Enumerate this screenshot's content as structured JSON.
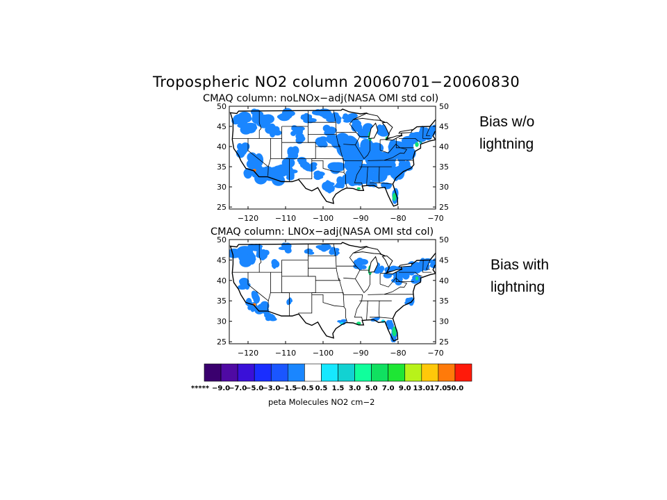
{
  "figure": {
    "title": "Tropospheric NO2 column 20060701−20060830",
    "units_label": "peta Molecules NO2 cm−2"
  },
  "panels": [
    {
      "subtitle": "CMAQ column: noLNOx−adj(NASA OMI std col)",
      "annotation": [
        "Bias w/o",
        "lightning"
      ]
    },
    {
      "subtitle": "CMAQ column: LNOx−adj(NASA OMI std col)",
      "annotation": [
        "Bias with",
        "lightning"
      ]
    }
  ],
  "axes": {
    "lon_ticks": [
      "−120",
      "−110",
      "−100",
      "−90",
      "−80",
      "−70"
    ],
    "lat_ticks": [
      "50",
      "45",
      "40",
      "35",
      "30",
      "25"
    ],
    "lon_range": [
      -125,
      -70
    ],
    "lat_range": [
      24.5,
      50
    ]
  },
  "colorbar": {
    "colors": [
      "#3a006e",
      "#4f0aa3",
      "#3a10d8",
      "#1a2eff",
      "#1a56ff",
      "#1a86ff",
      "#ffffff",
      "#16e8ff",
      "#12d2d2",
      "#10ff9c",
      "#10e060",
      "#1ee634",
      "#b8f21a",
      "#ffc80a",
      "#ff7a0a",
      "#ff1a0a"
    ],
    "labels": [
      "*****",
      "−9.0",
      "−7.0",
      "−5.0",
      "−3.0",
      "−1.5",
      "−0.5",
      "0.5",
      "1.5",
      "3.0",
      "5.0",
      "7.0",
      "9.0",
      "13.0",
      "17.0",
      "50.0"
    ]
  }
}
